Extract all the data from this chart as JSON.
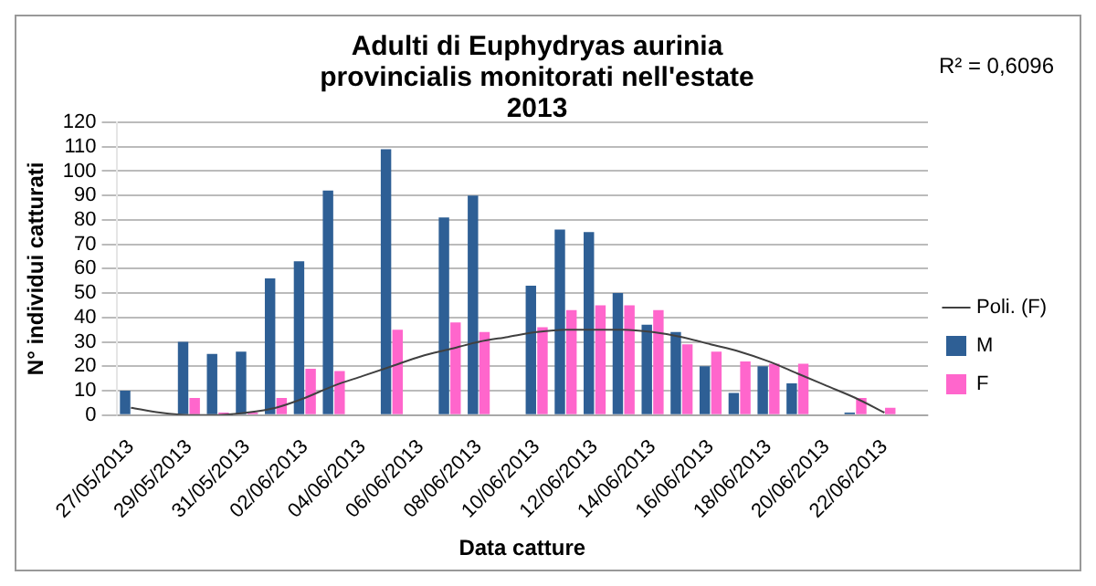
{
  "chart_data": {
    "type": "bar",
    "title": "Adulti di Euphydryas aurinia provincialis monitorati nell'estate 2013",
    "xlabel": "Data catture",
    "ylabel": "N° individui catturati",
    "annotations": [
      "R² = 0,6096"
    ],
    "categories": [
      "27/05/2013",
      null,
      "29/05/2013",
      null,
      "31/05/2013",
      null,
      "02/06/2013",
      null,
      "04/06/2013",
      null,
      "06/06/2013",
      null,
      "08/06/2013",
      null,
      "10/06/2013",
      null,
      "12/06/2013",
      null,
      "14/06/2013",
      null,
      "16/06/2013",
      null,
      "18/06/2013",
      null,
      "20/06/2013",
      null,
      "22/06/2013",
      null
    ],
    "series": [
      {
        "name": "M",
        "color": "#2e5f95",
        "values": [
          10,
          null,
          30,
          25,
          26,
          56,
          63,
          92,
          null,
          109,
          null,
          81,
          90,
          null,
          53,
          76,
          75,
          50,
          37,
          34,
          20,
          9,
          20,
          13,
          null,
          1,
          null,
          null
        ]
      },
      {
        "name": "F",
        "color": "#ff66cc",
        "values": [
          0,
          null,
          7,
          1,
          1,
          7,
          19,
          18,
          null,
          35,
          null,
          38,
          34,
          null,
          36,
          43,
          45,
          45,
          43,
          29,
          26,
          22,
          21,
          21,
          null,
          7,
          3,
          null
        ]
      },
      {
        "name": "Poli. (F)",
        "type": "line",
        "color": "#404040",
        "marker": "none",
        "values": [
          3,
          1,
          0,
          0,
          1,
          3,
          7,
          12,
          16,
          20,
          24,
          27,
          30,
          32,
          34,
          35,
          35,
          35,
          34,
          32,
          29,
          26,
          22,
          17,
          12,
          7,
          1,
          null
        ]
      }
    ],
    "ylim": [
      0,
      120
    ],
    "yticks": [
      0,
      10,
      20,
      30,
      40,
      50,
      60,
      70,
      80,
      90,
      100,
      110,
      120
    ],
    "grid": "y",
    "legend": "right"
  }
}
